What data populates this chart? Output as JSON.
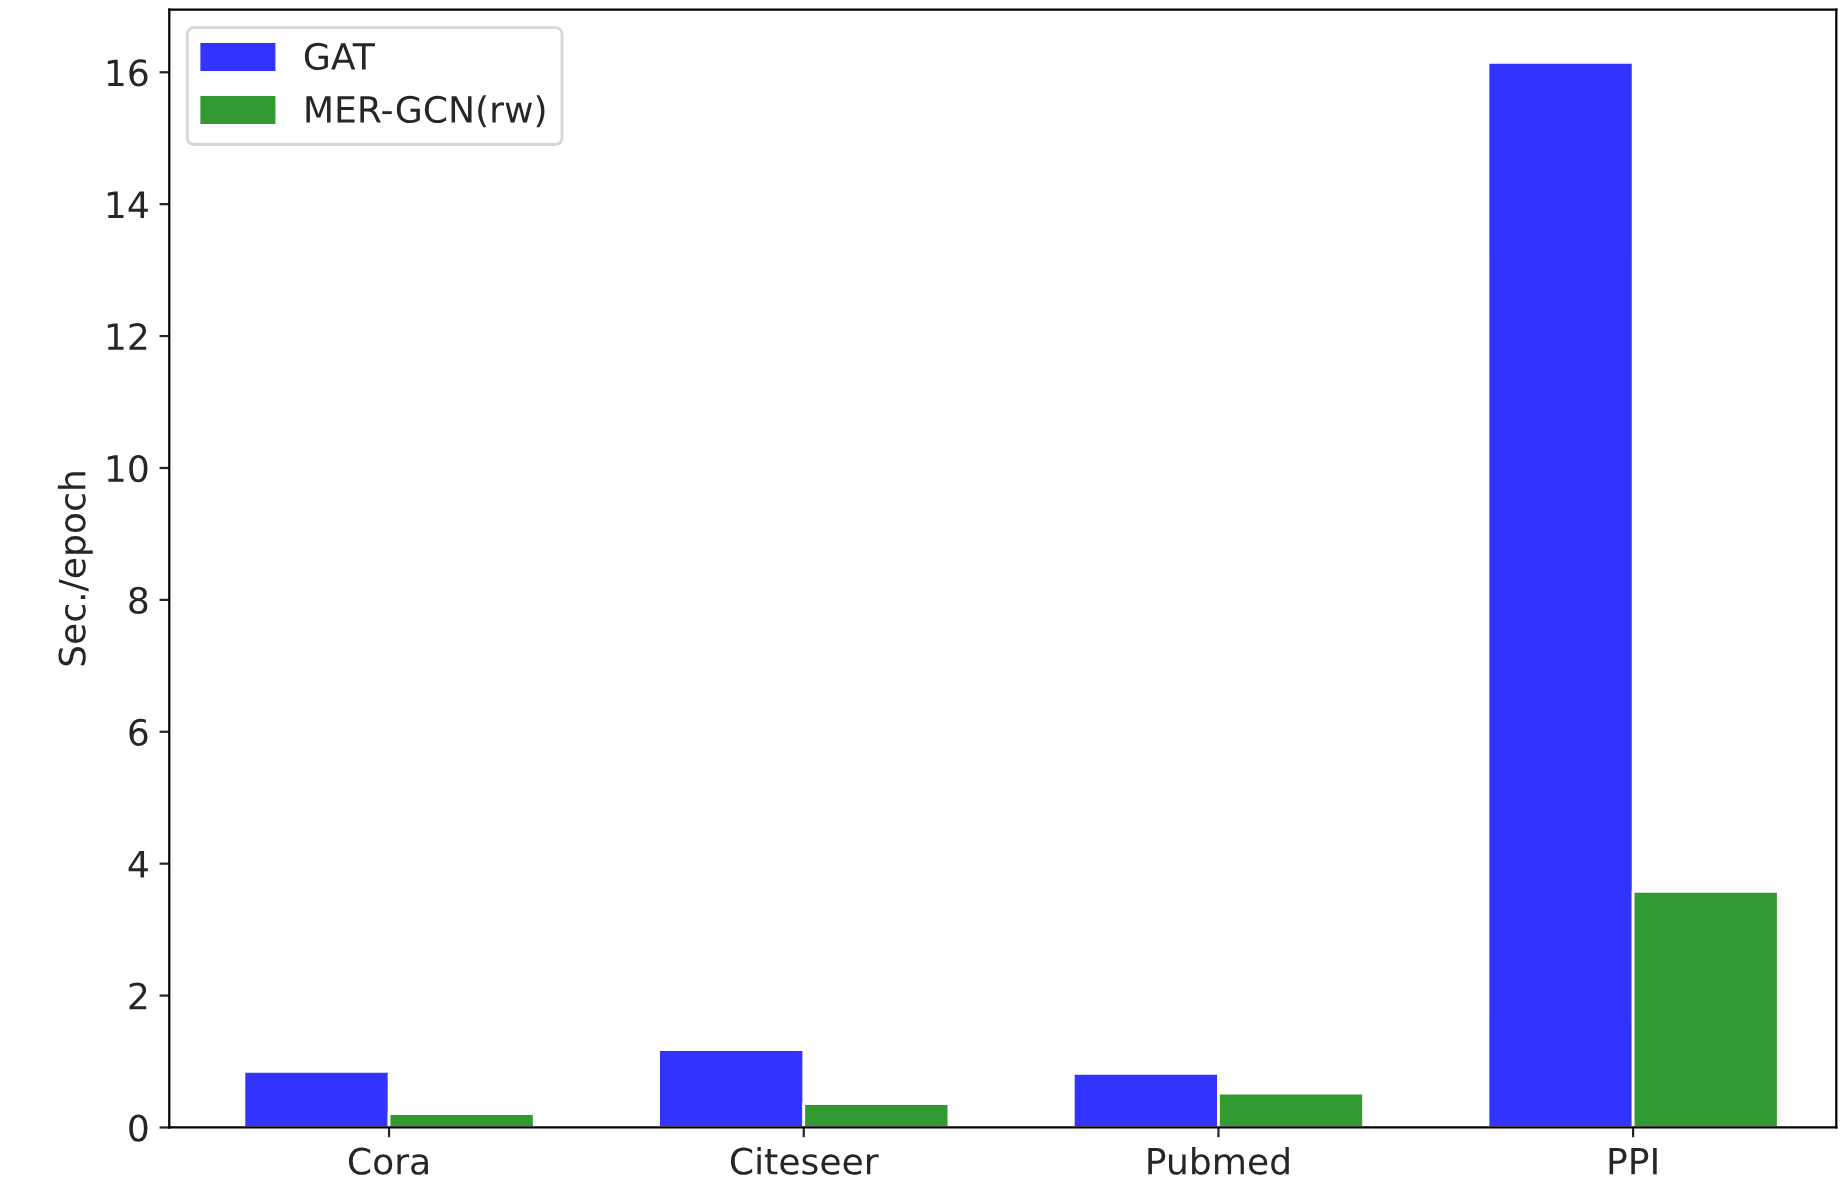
{
  "chart_data": {
    "type": "bar",
    "ylabel": "Sec./epoch",
    "categories": [
      "Cora",
      "Citeseer",
      "Pubmed",
      "PPI"
    ],
    "series": [
      {
        "name": "GAT",
        "color": "#3333ff",
        "values": [
          0.85,
          1.18,
          0.82,
          16.15
        ]
      },
      {
        "name": "MER-GCN(rw)",
        "color": "#339933",
        "values": [
          0.21,
          0.36,
          0.52,
          3.58
        ]
      }
    ],
    "ylim": [
      0,
      16.95
    ],
    "yticks": [
      0,
      2,
      4,
      6,
      8,
      10,
      12,
      14,
      16
    ],
    "grid": false,
    "legend": "top left"
  }
}
